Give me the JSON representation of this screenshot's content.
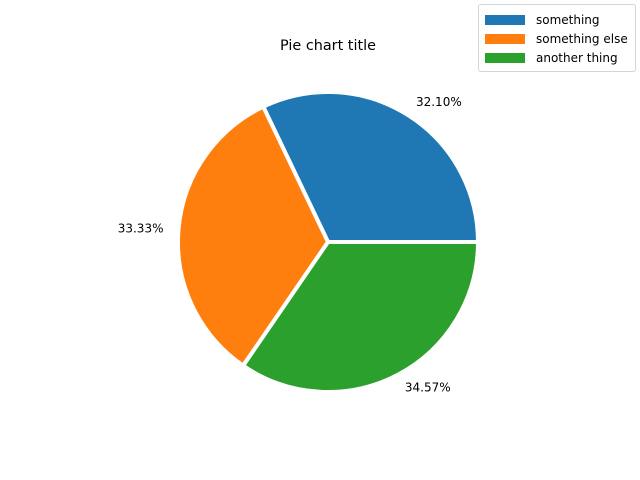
{
  "chart_data": {
    "type": "pie",
    "title": "Pie chart title",
    "categories": [
      "something",
      "something else",
      "another thing"
    ],
    "values": [
      32.1,
      33.33,
      34.57
    ],
    "labels": [
      "32.10%",
      "33.33%",
      "34.57%"
    ],
    "colors": [
      "#1f77b4",
      "#ff7f0e",
      "#2ca02c"
    ],
    "wedge_edge_color": "#ffffff",
    "start_angle_deg": 0,
    "direction": "counterclockwise",
    "legend_placement": "top-right"
  },
  "legend": {
    "items": [
      {
        "label": "something",
        "color": "#1f77b4"
      },
      {
        "label": "something else",
        "color": "#ff7f0e"
      },
      {
        "label": "another thing",
        "color": "#2ca02c"
      }
    ]
  }
}
